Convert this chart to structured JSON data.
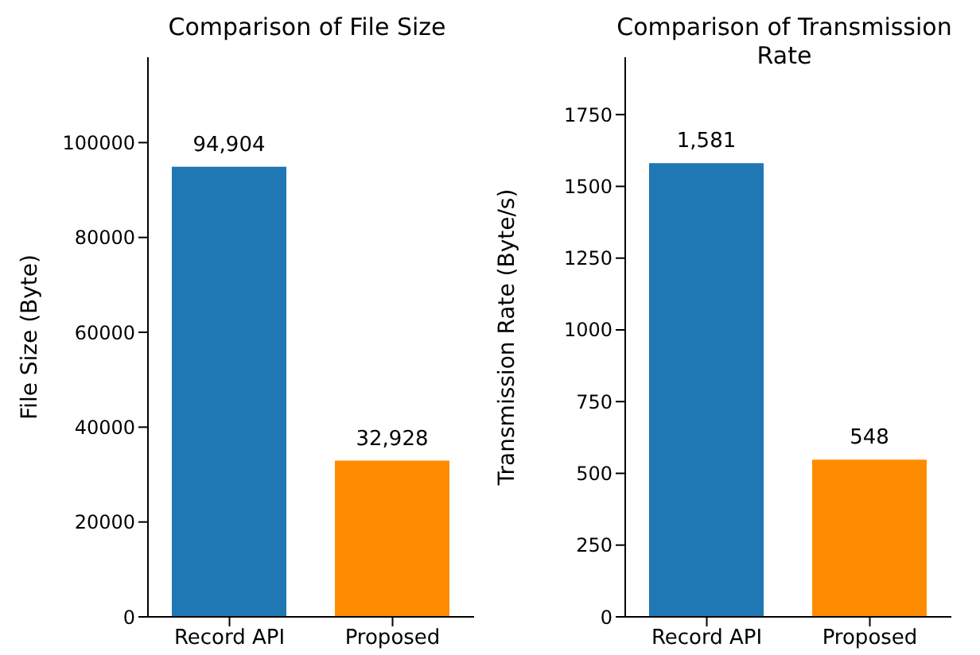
{
  "chart_data": [
    {
      "type": "bar",
      "title": "Comparison of File Size",
      "ylabel": "File Size (Byte)",
      "categories": [
        "Record API",
        "Proposed"
      ],
      "values": [
        94904,
        32928
      ],
      "colors": [
        "#1f77b4",
        "#ff8c00"
      ],
      "value_labels": [
        "94,904",
        "32,928"
      ],
      "ylim": [
        0,
        118000
      ],
      "yticks": [
        0,
        20000,
        40000,
        60000,
        80000,
        100000
      ],
      "grid": false,
      "legend": false
    },
    {
      "type": "bar",
      "title": "Comparison of Transmission Rate",
      "ylabel": "Transmission Rate (Byte/s)",
      "categories": [
        "Record API",
        "Proposed"
      ],
      "values": [
        1581,
        548
      ],
      "colors": [
        "#1f77b4",
        "#ff8c00"
      ],
      "value_labels": [
        "1,581",
        "548"
      ],
      "ylim": [
        0,
        1950
      ],
      "yticks": [
        0,
        250,
        500,
        750,
        1000,
        1250,
        1500,
        1750
      ],
      "grid": false,
      "legend": false
    }
  ]
}
